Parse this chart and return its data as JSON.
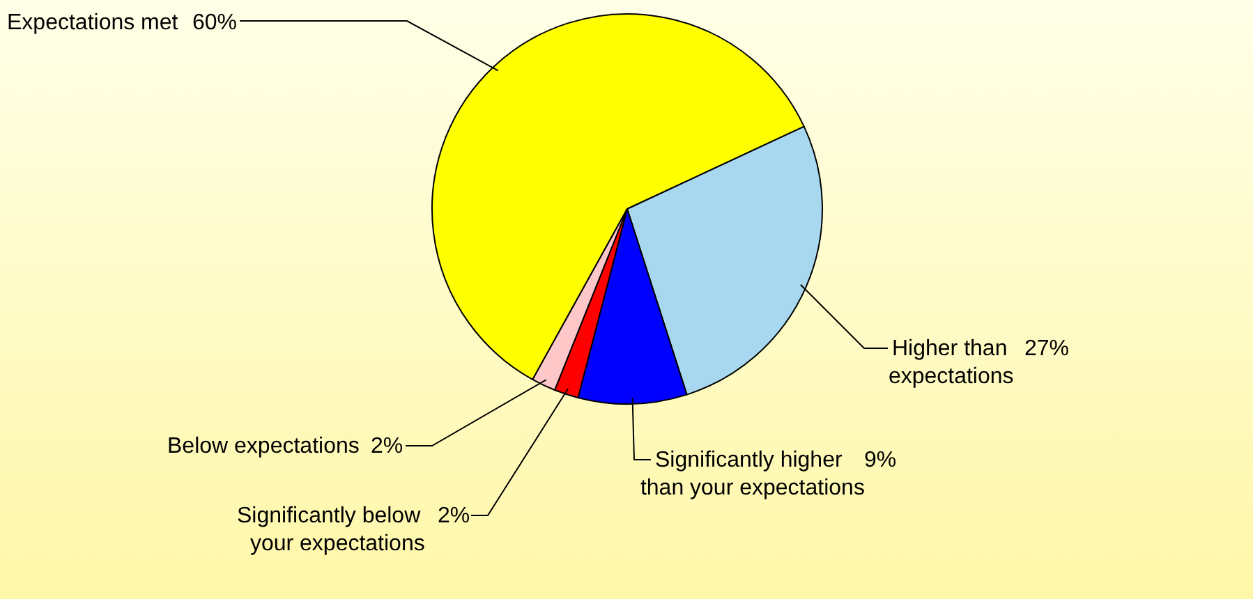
{
  "chart_data": {
    "type": "pie",
    "categories": [
      "Expectations met",
      "Higher than expectations",
      "Significantly higher than your expectations",
      "Significantly below your expectations",
      "Below expectations"
    ],
    "values": [
      60,
      27,
      9,
      2,
      2
    ],
    "colors": [
      "#ffff00",
      "#a8d8f0",
      "#0000ff",
      "#ff0000",
      "#ffc8c8"
    ],
    "value_labels": [
      "60%",
      "27%",
      "9%",
      "2%",
      "2%"
    ]
  }
}
